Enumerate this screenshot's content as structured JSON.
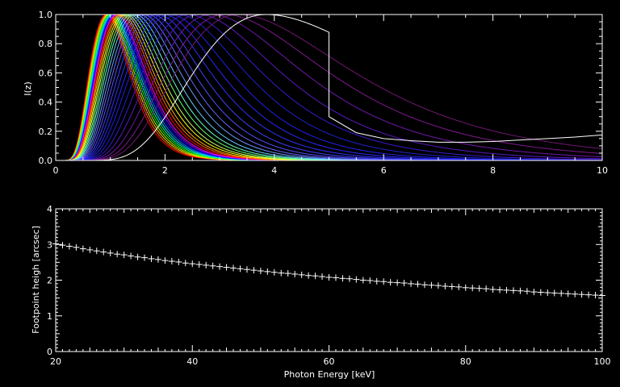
{
  "chart_data": [
    {
      "type": "line",
      "title": "",
      "xlabel": "",
      "ylabel": "I(z)",
      "xlim": [
        0,
        10
      ],
      "ylim": [
        0,
        1.0
      ],
      "xticks": [
        "0",
        "2",
        "4",
        "6",
        "8",
        "10"
      ],
      "yticks": [
        "0.0",
        "0.2",
        "0.4",
        "0.6",
        "0.8",
        "1.0"
      ],
      "grid": false,
      "legend": "none",
      "series": [
        {
          "peak": 0.93,
          "color": "#ff0000"
        },
        {
          "peak": 0.95,
          "color": "#ff6a00"
        },
        {
          "peak": 0.97,
          "color": "#ffd400"
        },
        {
          "peak": 0.99,
          "color": "#aaff00"
        },
        {
          "peak": 1.01,
          "color": "#00ff00"
        },
        {
          "peak": 1.03,
          "color": "#00ffaa"
        },
        {
          "peak": 1.05,
          "color": "#00d4ff"
        },
        {
          "peak": 1.07,
          "color": "#006aff"
        },
        {
          "peak": 1.09,
          "color": "#0000ff"
        },
        {
          "peak": 1.11,
          "color": "#8000ff"
        },
        {
          "peak": 1.13,
          "color": "#ff00ff"
        },
        {
          "peak": 1.16,
          "color": "#ff0000"
        },
        {
          "peak": 1.19,
          "color": "#ff6a00"
        },
        {
          "peak": 1.22,
          "color": "#ffaa00"
        },
        {
          "peak": 1.26,
          "color": "#ffff00"
        },
        {
          "peak": 1.3,
          "color": "#ccff66"
        },
        {
          "peak": 1.35,
          "color": "#66ff66"
        },
        {
          "peak": 1.4,
          "color": "#66ffcc"
        },
        {
          "peak": 1.46,
          "color": "#66ccff"
        },
        {
          "peak": 1.53,
          "color": "#6699ff"
        },
        {
          "peak": 1.6,
          "color": "#6666ff"
        },
        {
          "peak": 1.68,
          "color": "#5050ff"
        },
        {
          "peak": 1.77,
          "color": "#4040ff"
        },
        {
          "peak": 1.87,
          "color": "#3030ff"
        },
        {
          "peak": 1.98,
          "color": "#2828ff"
        },
        {
          "peak": 2.1,
          "color": "#2020f0"
        },
        {
          "peak": 2.25,
          "color": "#2020d0"
        },
        {
          "peak": 2.42,
          "color": "#3a1ad0"
        },
        {
          "peak": 2.62,
          "color": "#5a18c0"
        },
        {
          "peak": 2.85,
          "color": "#7018a8"
        },
        {
          "peak": 3.1,
          "color": "#801890"
        },
        {
          "peak": 3.35,
          "color": "#701870"
        },
        {
          "peak": 3.85,
          "color": "#ffffff"
        }
      ],
      "white_tail": [
        [
          5.0,
          0.3
        ],
        [
          5.5,
          0.19
        ],
        [
          6.0,
          0.15
        ],
        [
          6.5,
          0.135
        ],
        [
          7.0,
          0.125
        ],
        [
          7.5,
          0.125
        ],
        [
          8.0,
          0.13
        ],
        [
          8.5,
          0.14
        ],
        [
          9.0,
          0.15
        ],
        [
          9.5,
          0.16
        ],
        [
          10.0,
          0.175
        ]
      ]
    },
    {
      "type": "scatter",
      "title": "",
      "xlabel": "Photon Energy [keV]",
      "ylabel": "Footpoint heigh [arcsec]",
      "xlim": [
        20,
        100
      ],
      "ylim": [
        0,
        4
      ],
      "xticks": [
        "20",
        "40",
        "60",
        "80",
        "100"
      ],
      "yticks": [
        "0",
        "1",
        "2",
        "3",
        "4"
      ],
      "grid": false,
      "legend": "none",
      "marker": "plus",
      "x": [
        20,
        21,
        22,
        23,
        24,
        25,
        26,
        27,
        28,
        29,
        30,
        31,
        32,
        33,
        34,
        35,
        36,
        37,
        38,
        39,
        40,
        41,
        42,
        43,
        44,
        45,
        46,
        47,
        48,
        49,
        50,
        51,
        52,
        53,
        54,
        55,
        56,
        57,
        58,
        59,
        60,
        61,
        62,
        63,
        64,
        65,
        66,
        67,
        68,
        69,
        70,
        71,
        72,
        73,
        74,
        75,
        76,
        77,
        78,
        79,
        80,
        81,
        82,
        83,
        84,
        85,
        86,
        87,
        88,
        89,
        90,
        91,
        92,
        93,
        94,
        95,
        96,
        97,
        98,
        99,
        100
      ],
      "y": [
        3.02,
        2.98,
        2.95,
        2.92,
        2.88,
        2.85,
        2.82,
        2.79,
        2.76,
        2.73,
        2.71,
        2.68,
        2.65,
        2.63,
        2.6,
        2.58,
        2.55,
        2.53,
        2.51,
        2.48,
        2.46,
        2.44,
        2.42,
        2.4,
        2.38,
        2.36,
        2.34,
        2.32,
        2.3,
        2.28,
        2.26,
        2.24,
        2.22,
        2.2,
        2.19,
        2.17,
        2.15,
        2.13,
        2.12,
        2.1,
        2.08,
        2.07,
        2.05,
        2.04,
        2.02,
        2.0,
        1.99,
        1.97,
        1.96,
        1.94,
        1.93,
        1.92,
        1.9,
        1.89,
        1.87,
        1.86,
        1.85,
        1.83,
        1.82,
        1.81,
        1.79,
        1.78,
        1.77,
        1.76,
        1.74,
        1.73,
        1.72,
        1.71,
        1.7,
        1.69,
        1.67,
        1.66,
        1.65,
        1.64,
        1.63,
        1.62,
        1.61,
        1.6,
        1.59,
        1.58,
        1.57
      ]
    }
  ]
}
